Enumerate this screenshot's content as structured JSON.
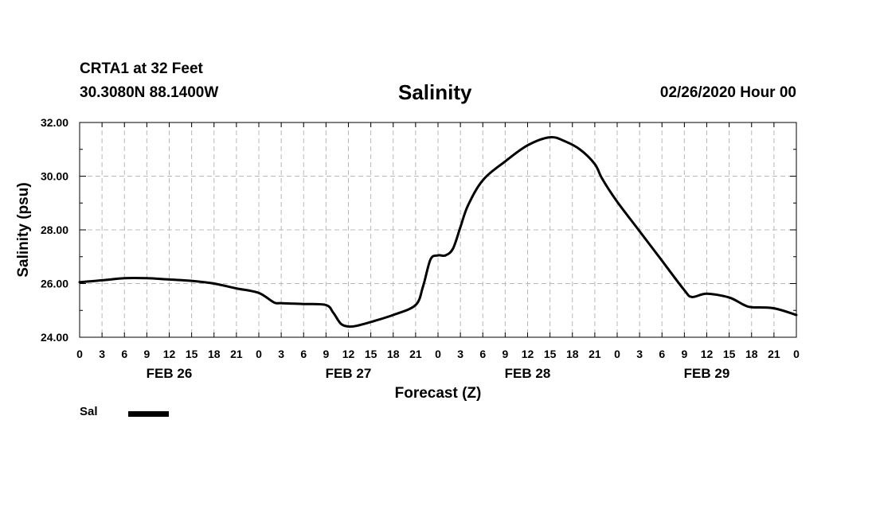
{
  "header": {
    "station": "CRTA1 at 32 Feet",
    "coordinates": "30.3080N 88.1400W",
    "title": "Salinity",
    "run": "02/26/2020 Hour 00"
  },
  "chart_data": {
    "type": "line",
    "title": "Salinity",
    "xlabel": "Forecast (Z)",
    "ylabel": "Salinity (psu)",
    "ylim": [
      24,
      32
    ],
    "xlim": [
      0,
      96
    ],
    "yticks": [
      "24.00",
      "26.00",
      "28.00",
      "30.00",
      "32.00"
    ],
    "yticks_values": [
      24,
      26,
      28,
      30,
      32
    ],
    "xtick_labels": [
      "0",
      "3",
      "6",
      "9",
      "12",
      "15",
      "18",
      "21",
      "0",
      "3",
      "6",
      "9",
      "12",
      "15",
      "18",
      "21",
      "0",
      "3",
      "6",
      "9",
      "12",
      "15",
      "18",
      "21",
      "0",
      "3",
      "6",
      "9",
      "12",
      "15",
      "18",
      "21",
      "0"
    ],
    "day_labels": [
      "FEB 26",
      "FEB 27",
      "FEB 28",
      "FEB 29"
    ],
    "day_label_hours": [
      12,
      36,
      60,
      84
    ],
    "grid": true,
    "legend_position": "bottom-left",
    "series": [
      {
        "name": "Sal",
        "color": "#000000",
        "x": [
          0,
          3,
          6,
          9,
          12,
          15,
          18,
          21,
          24,
          26,
          27,
          30,
          33,
          34,
          35,
          36,
          37,
          39,
          42,
          45,
          46,
          47,
          48,
          49,
          50,
          51,
          52,
          54,
          57,
          60,
          63,
          65,
          67,
          69,
          70,
          72,
          75,
          78,
          81,
          82,
          84,
          87,
          89,
          90,
          93,
          96
        ],
        "y": [
          26.05,
          26.12,
          26.2,
          26.2,
          26.15,
          26.1,
          26.0,
          25.82,
          25.65,
          25.3,
          25.27,
          25.24,
          25.2,
          24.9,
          24.5,
          24.4,
          24.42,
          24.57,
          24.83,
          25.2,
          25.9,
          26.9,
          27.05,
          27.05,
          27.3,
          28.1,
          28.9,
          29.85,
          30.55,
          31.15,
          31.45,
          31.3,
          31.0,
          30.45,
          29.9,
          29.05,
          27.95,
          26.85,
          25.75,
          25.5,
          25.62,
          25.48,
          25.2,
          25.12,
          25.08,
          24.83
        ]
      }
    ]
  },
  "legend": {
    "label": "Sal",
    "color": "#000000"
  }
}
